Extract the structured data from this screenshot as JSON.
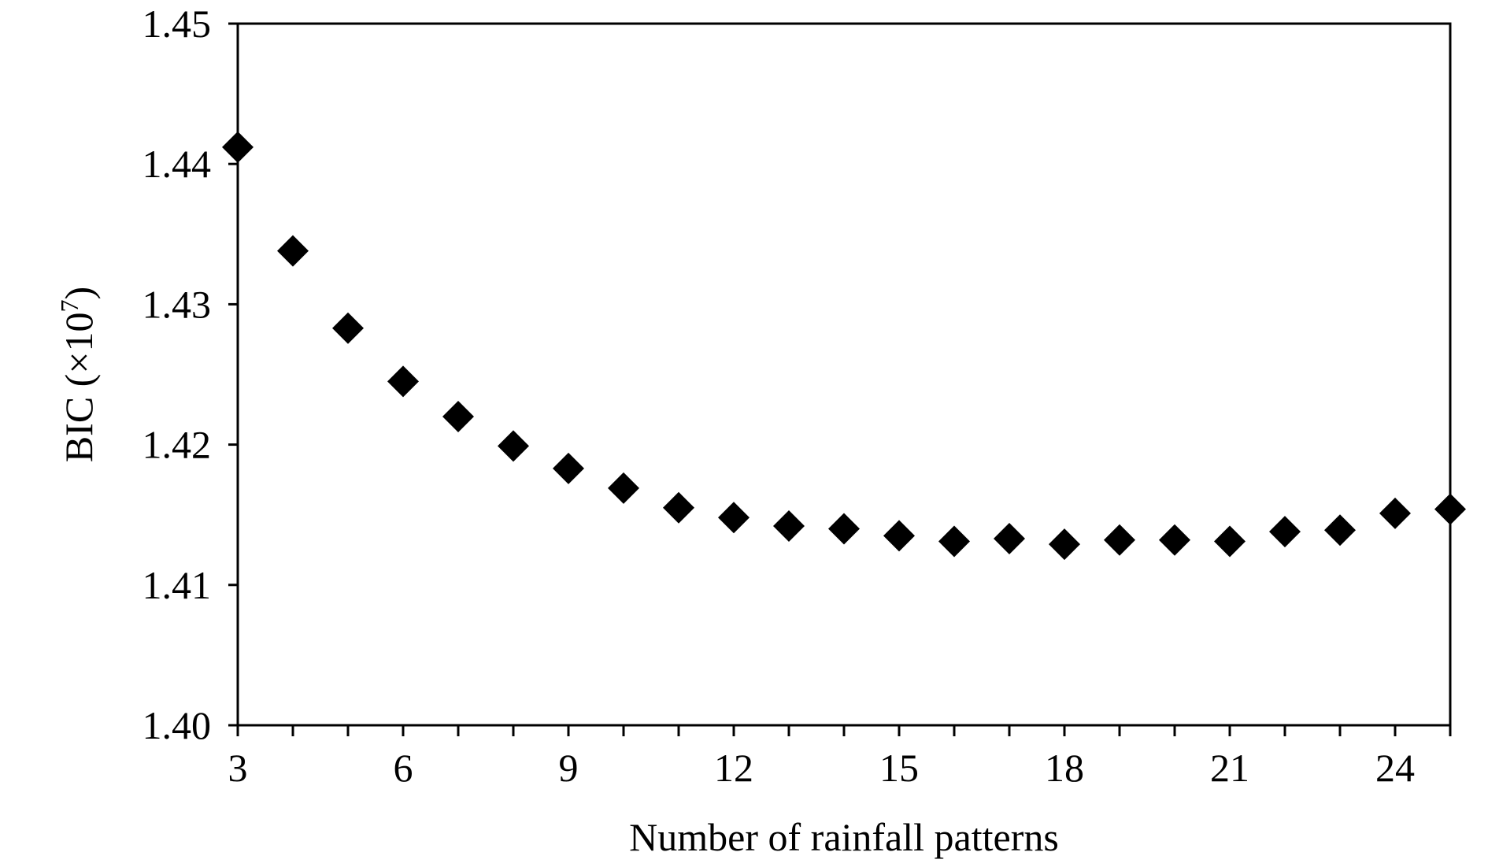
{
  "chart_data": {
    "type": "scatter",
    "xlabel": "Number of rainfall patterns",
    "ylabel": "BIC (×10",
    "ylabel_exponent": "7",
    "ylabel_close": ")",
    "xlim": [
      3,
      25
    ],
    "ylim": [
      1.4,
      1.45
    ],
    "x_ticks": [
      3,
      6,
      9,
      12,
      15,
      18,
      21,
      24
    ],
    "x_tick_labels": [
      "3",
      "6",
      "9",
      "12",
      "15",
      "18",
      "21",
      "24"
    ],
    "y_ticks": [
      1.4,
      1.41,
      1.42,
      1.43,
      1.44,
      1.45
    ],
    "y_tick_labels": [
      "1.40",
      "1.41",
      "1.42",
      "1.43",
      "1.44",
      "1.45"
    ],
    "x_minor_ticks": [
      4,
      5,
      7,
      8,
      10,
      11,
      13,
      14,
      16,
      17,
      19,
      20,
      22,
      23,
      25
    ],
    "grid": false,
    "marker": "diamond",
    "marker_color": "#000000",
    "series": [
      {
        "x": [
          3,
          4,
          5,
          6,
          7,
          8,
          9,
          10,
          11,
          12,
          13,
          14,
          15,
          16,
          17,
          18,
          19,
          20,
          21,
          22,
          23,
          24,
          25
        ],
        "values": [
          1.4412,
          1.4338,
          1.4283,
          1.4245,
          1.422,
          1.4199,
          1.4183,
          1.4169,
          1.4155,
          1.4148,
          1.4142,
          1.414,
          1.4135,
          1.4131,
          1.4133,
          1.4129,
          1.4132,
          1.4132,
          1.4131,
          1.4138,
          1.4139,
          1.4151,
          1.4154
        ]
      }
    ]
  }
}
